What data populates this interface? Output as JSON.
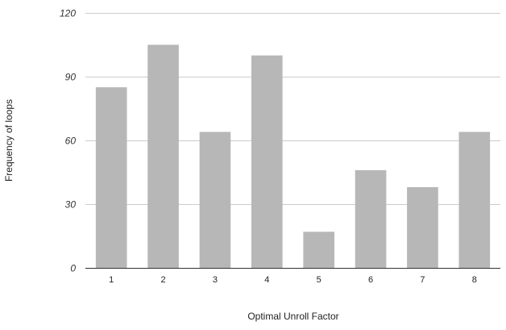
{
  "chart_data": {
    "type": "bar",
    "title": "",
    "xlabel": "Optimal Unroll Factor",
    "ylabel": "Frequency of loops",
    "categories": [
      "1",
      "2",
      "3",
      "4",
      "5",
      "6",
      "7",
      "8"
    ],
    "values": [
      85,
      105,
      64,
      100,
      17,
      46,
      38,
      64
    ],
    "ylim": [
      0,
      120
    ],
    "yticks": [
      0,
      30,
      60,
      90,
      120
    ],
    "grid": true,
    "legend": "none",
    "colors": {
      "bar": "#b7b7b7",
      "grid": "#cccccc",
      "axis": "#333333"
    }
  }
}
